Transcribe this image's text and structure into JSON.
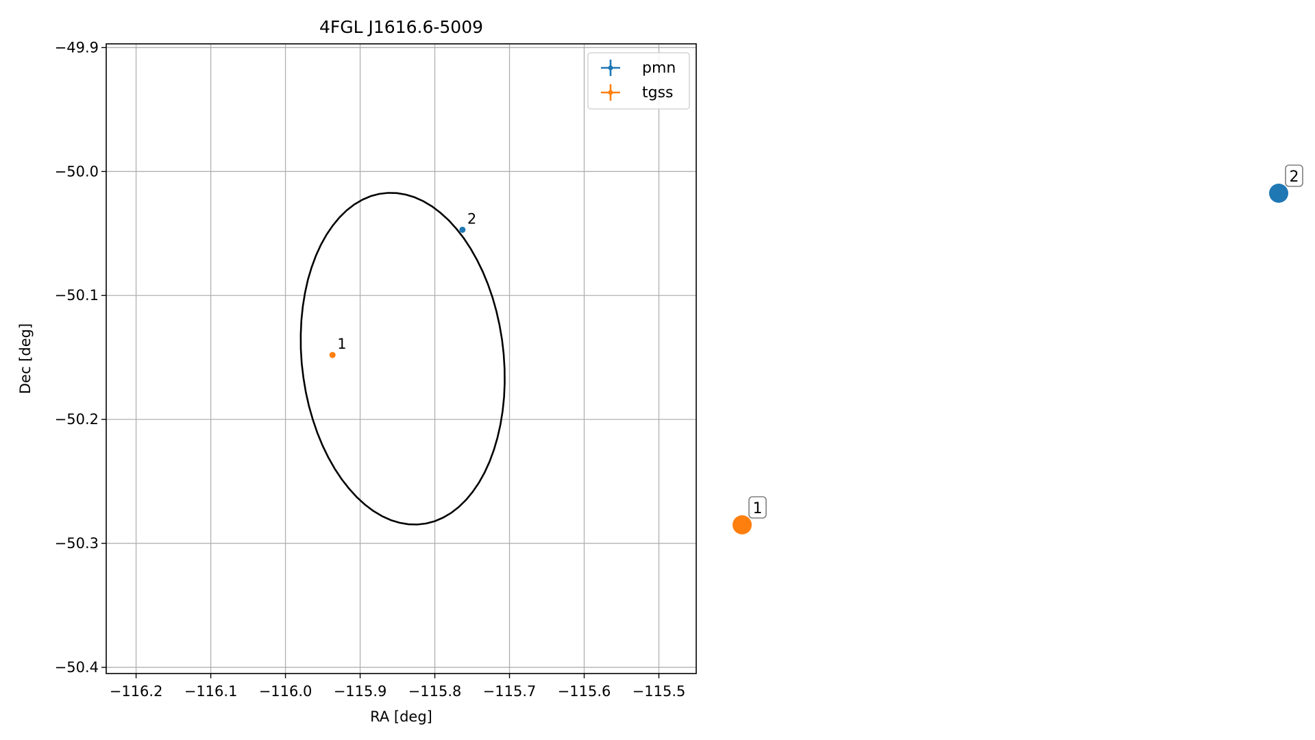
{
  "chart_data": {
    "type": "scatter",
    "title": "4FGL J1616.6-5009",
    "xlabel": "RA [deg]",
    "ylabel": "Dec [deg]",
    "xlim": [
      -116.24,
      -115.45
    ],
    "ylim": [
      -50.405,
      -49.897
    ],
    "x_ticks": [
      -116.2,
      -116.1,
      -116.0,
      -115.9,
      -115.8,
      -115.7,
      -115.6,
      -115.5
    ],
    "x_tick_labels": [
      "−116.2",
      "−116.1",
      "−116.0",
      "−115.9",
      "−115.8",
      "−115.7",
      "−115.6",
      "−115.5"
    ],
    "y_ticks": [
      -49.9,
      -50.0,
      -50.1,
      -50.2,
      -50.3,
      -50.4
    ],
    "y_tick_labels": [
      "−49.9",
      "−50.0",
      "−50.1",
      "−50.2",
      "−50.3",
      "−50.4"
    ],
    "grid": true,
    "legend_position": "top-right",
    "series": [
      {
        "name": "pmn",
        "color": "#1f77b4",
        "points": [
          {
            "x": -115.763,
            "y": -50.047,
            "label": "2"
          }
        ]
      },
      {
        "name": "tgss",
        "color": "#ff7f0e",
        "points": [
          {
            "x": -115.937,
            "y": -50.148,
            "label": "1"
          }
        ]
      }
    ],
    "ellipse": {
      "center": [
        -115.843,
        -50.151
      ],
      "semi_major_deg": 0.143,
      "semi_minor_deg": 0.127,
      "angle_deg": -40,
      "color": "#000000"
    },
    "callouts": [
      {
        "label": "2",
        "color": "#1f77b4"
      },
      {
        "label": "1",
        "color": "#ff7f0e"
      }
    ]
  }
}
